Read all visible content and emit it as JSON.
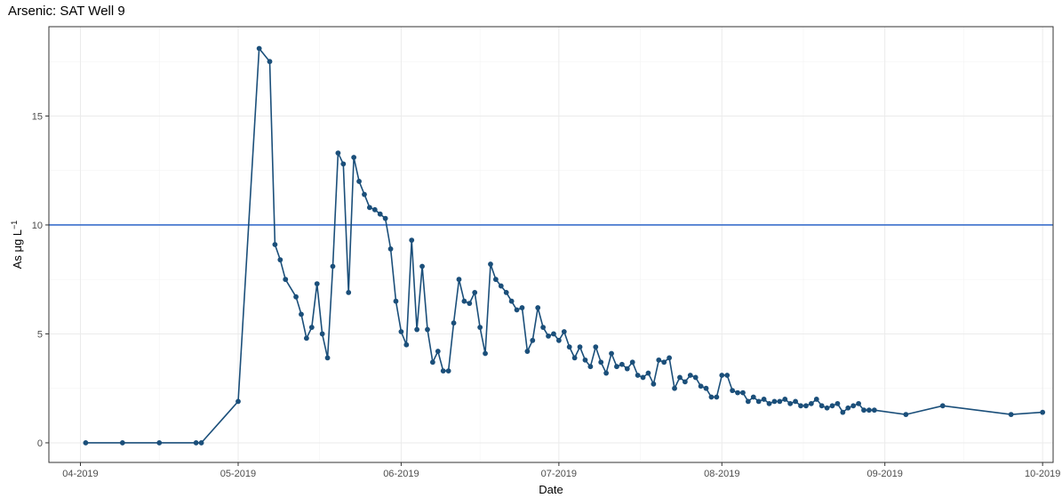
{
  "chart_data": {
    "type": "line",
    "title": "Arsenic: SAT Well 9",
    "xlabel": "Date",
    "ylabel_base": "As μg L",
    "ylabel_sup": "−1",
    "x_ticks": [
      "2019-04-01",
      "2019-05-01",
      "2019-06-01",
      "2019-07-01",
      "2019-08-01",
      "2019-09-01",
      "2019-10-01"
    ],
    "x_tick_labels": [
      "04-2019",
      "05-2019",
      "06-2019",
      "07-2019",
      "08-2019",
      "09-2019",
      "10-2019"
    ],
    "xlim": [
      "2019-03-26",
      "2019-10-03"
    ],
    "y_ticks": [
      0,
      5,
      10,
      15
    ],
    "y_tick_labels": [
      "0",
      "5",
      "10",
      "15"
    ],
    "ylim": [
      -0.9,
      19.1
    ],
    "grid": true,
    "reference_line": {
      "y": 10,
      "color": "#3a6fcc"
    },
    "series_color": "#1b4f7a",
    "points": [
      [
        "2019-04-02",
        0
      ],
      [
        "2019-04-09",
        0
      ],
      [
        "2019-04-16",
        0
      ],
      [
        "2019-04-23",
        0
      ],
      [
        "2019-04-24",
        0
      ],
      [
        "2019-05-01",
        1.9
      ],
      [
        "2019-05-05",
        18.1
      ],
      [
        "2019-05-07",
        17.5
      ],
      [
        "2019-05-08",
        9.1
      ],
      [
        "2019-05-09",
        8.4
      ],
      [
        "2019-05-10",
        7.5
      ],
      [
        "2019-05-12",
        6.7
      ],
      [
        "2019-05-13",
        5.9
      ],
      [
        "2019-05-14",
        4.8
      ],
      [
        "2019-05-15",
        5.3
      ],
      [
        "2019-05-16",
        7.3
      ],
      [
        "2019-05-17",
        5.0
      ],
      [
        "2019-05-18",
        3.9
      ],
      [
        "2019-05-19",
        8.1
      ],
      [
        "2019-05-20",
        13.3
      ],
      [
        "2019-05-21",
        12.8
      ],
      [
        "2019-05-22",
        6.9
      ],
      [
        "2019-05-23",
        13.1
      ],
      [
        "2019-05-24",
        12.0
      ],
      [
        "2019-05-25",
        11.4
      ],
      [
        "2019-05-26",
        10.8
      ],
      [
        "2019-05-27",
        10.7
      ],
      [
        "2019-05-28",
        10.5
      ],
      [
        "2019-05-29",
        10.3
      ],
      [
        "2019-05-30",
        8.9
      ],
      [
        "2019-05-31",
        6.5
      ],
      [
        "2019-06-01",
        5.1
      ],
      [
        "2019-06-02",
        4.5
      ],
      [
        "2019-06-03",
        9.3
      ],
      [
        "2019-06-04",
        5.2
      ],
      [
        "2019-06-05",
        8.1
      ],
      [
        "2019-06-06",
        5.2
      ],
      [
        "2019-06-07",
        3.7
      ],
      [
        "2019-06-08",
        4.2
      ],
      [
        "2019-06-09",
        3.3
      ],
      [
        "2019-06-10",
        3.3
      ],
      [
        "2019-06-11",
        5.5
      ],
      [
        "2019-06-12",
        7.5
      ],
      [
        "2019-06-13",
        6.5
      ],
      [
        "2019-06-14",
        6.4
      ],
      [
        "2019-06-15",
        6.9
      ],
      [
        "2019-06-16",
        5.3
      ],
      [
        "2019-06-17",
        4.1
      ],
      [
        "2019-06-18",
        8.2
      ],
      [
        "2019-06-19",
        7.5
      ],
      [
        "2019-06-20",
        7.2
      ],
      [
        "2019-06-21",
        6.9
      ],
      [
        "2019-06-22",
        6.5
      ],
      [
        "2019-06-23",
        6.1
      ],
      [
        "2019-06-24",
        6.2
      ],
      [
        "2019-06-25",
        4.2
      ],
      [
        "2019-06-26",
        4.7
      ],
      [
        "2019-06-27",
        6.2
      ],
      [
        "2019-06-28",
        5.3
      ],
      [
        "2019-06-29",
        4.9
      ],
      [
        "2019-06-30",
        5.0
      ],
      [
        "2019-07-01",
        4.7
      ],
      [
        "2019-07-02",
        5.1
      ],
      [
        "2019-07-03",
        4.4
      ],
      [
        "2019-07-04",
        3.9
      ],
      [
        "2019-07-05",
        4.4
      ],
      [
        "2019-07-06",
        3.8
      ],
      [
        "2019-07-07",
        3.5
      ],
      [
        "2019-07-08",
        4.4
      ],
      [
        "2019-07-09",
        3.7
      ],
      [
        "2019-07-10",
        3.2
      ],
      [
        "2019-07-11",
        4.1
      ],
      [
        "2019-07-12",
        3.5
      ],
      [
        "2019-07-13",
        3.6
      ],
      [
        "2019-07-14",
        3.4
      ],
      [
        "2019-07-15",
        3.7
      ],
      [
        "2019-07-16",
        3.1
      ],
      [
        "2019-07-17",
        3.0
      ],
      [
        "2019-07-18",
        3.2
      ],
      [
        "2019-07-19",
        2.7
      ],
      [
        "2019-07-20",
        3.8
      ],
      [
        "2019-07-21",
        3.7
      ],
      [
        "2019-07-22",
        3.9
      ],
      [
        "2019-07-23",
        2.5
      ],
      [
        "2019-07-24",
        3.0
      ],
      [
        "2019-07-25",
        2.8
      ],
      [
        "2019-07-26",
        3.1
      ],
      [
        "2019-07-27",
        3.0
      ],
      [
        "2019-07-28",
        2.6
      ],
      [
        "2019-07-29",
        2.5
      ],
      [
        "2019-07-30",
        2.1
      ],
      [
        "2019-07-31",
        2.1
      ],
      [
        "2019-08-01",
        3.1
      ],
      [
        "2019-08-02",
        3.1
      ],
      [
        "2019-08-03",
        2.4
      ],
      [
        "2019-08-04",
        2.3
      ],
      [
        "2019-08-05",
        2.3
      ],
      [
        "2019-08-06",
        1.9
      ],
      [
        "2019-08-07",
        2.1
      ],
      [
        "2019-08-08",
        1.9
      ],
      [
        "2019-08-09",
        2.0
      ],
      [
        "2019-08-10",
        1.8
      ],
      [
        "2019-08-11",
        1.9
      ],
      [
        "2019-08-12",
        1.9
      ],
      [
        "2019-08-13",
        2.0
      ],
      [
        "2019-08-14",
        1.8
      ],
      [
        "2019-08-15",
        1.9
      ],
      [
        "2019-08-16",
        1.7
      ],
      [
        "2019-08-17",
        1.7
      ],
      [
        "2019-08-18",
        1.8
      ],
      [
        "2019-08-19",
        2.0
      ],
      [
        "2019-08-20",
        1.7
      ],
      [
        "2019-08-21",
        1.6
      ],
      [
        "2019-08-22",
        1.7
      ],
      [
        "2019-08-23",
        1.8
      ],
      [
        "2019-08-24",
        1.4
      ],
      [
        "2019-08-25",
        1.6
      ],
      [
        "2019-08-26",
        1.7
      ],
      [
        "2019-08-27",
        1.8
      ],
      [
        "2019-08-28",
        1.5
      ],
      [
        "2019-08-29",
        1.5
      ],
      [
        "2019-08-30",
        1.5
      ],
      [
        "2019-09-05",
        1.3
      ],
      [
        "2019-09-12",
        1.7
      ],
      [
        "2019-09-25",
        1.3
      ],
      [
        "2019-10-01",
        1.4
      ]
    ]
  }
}
